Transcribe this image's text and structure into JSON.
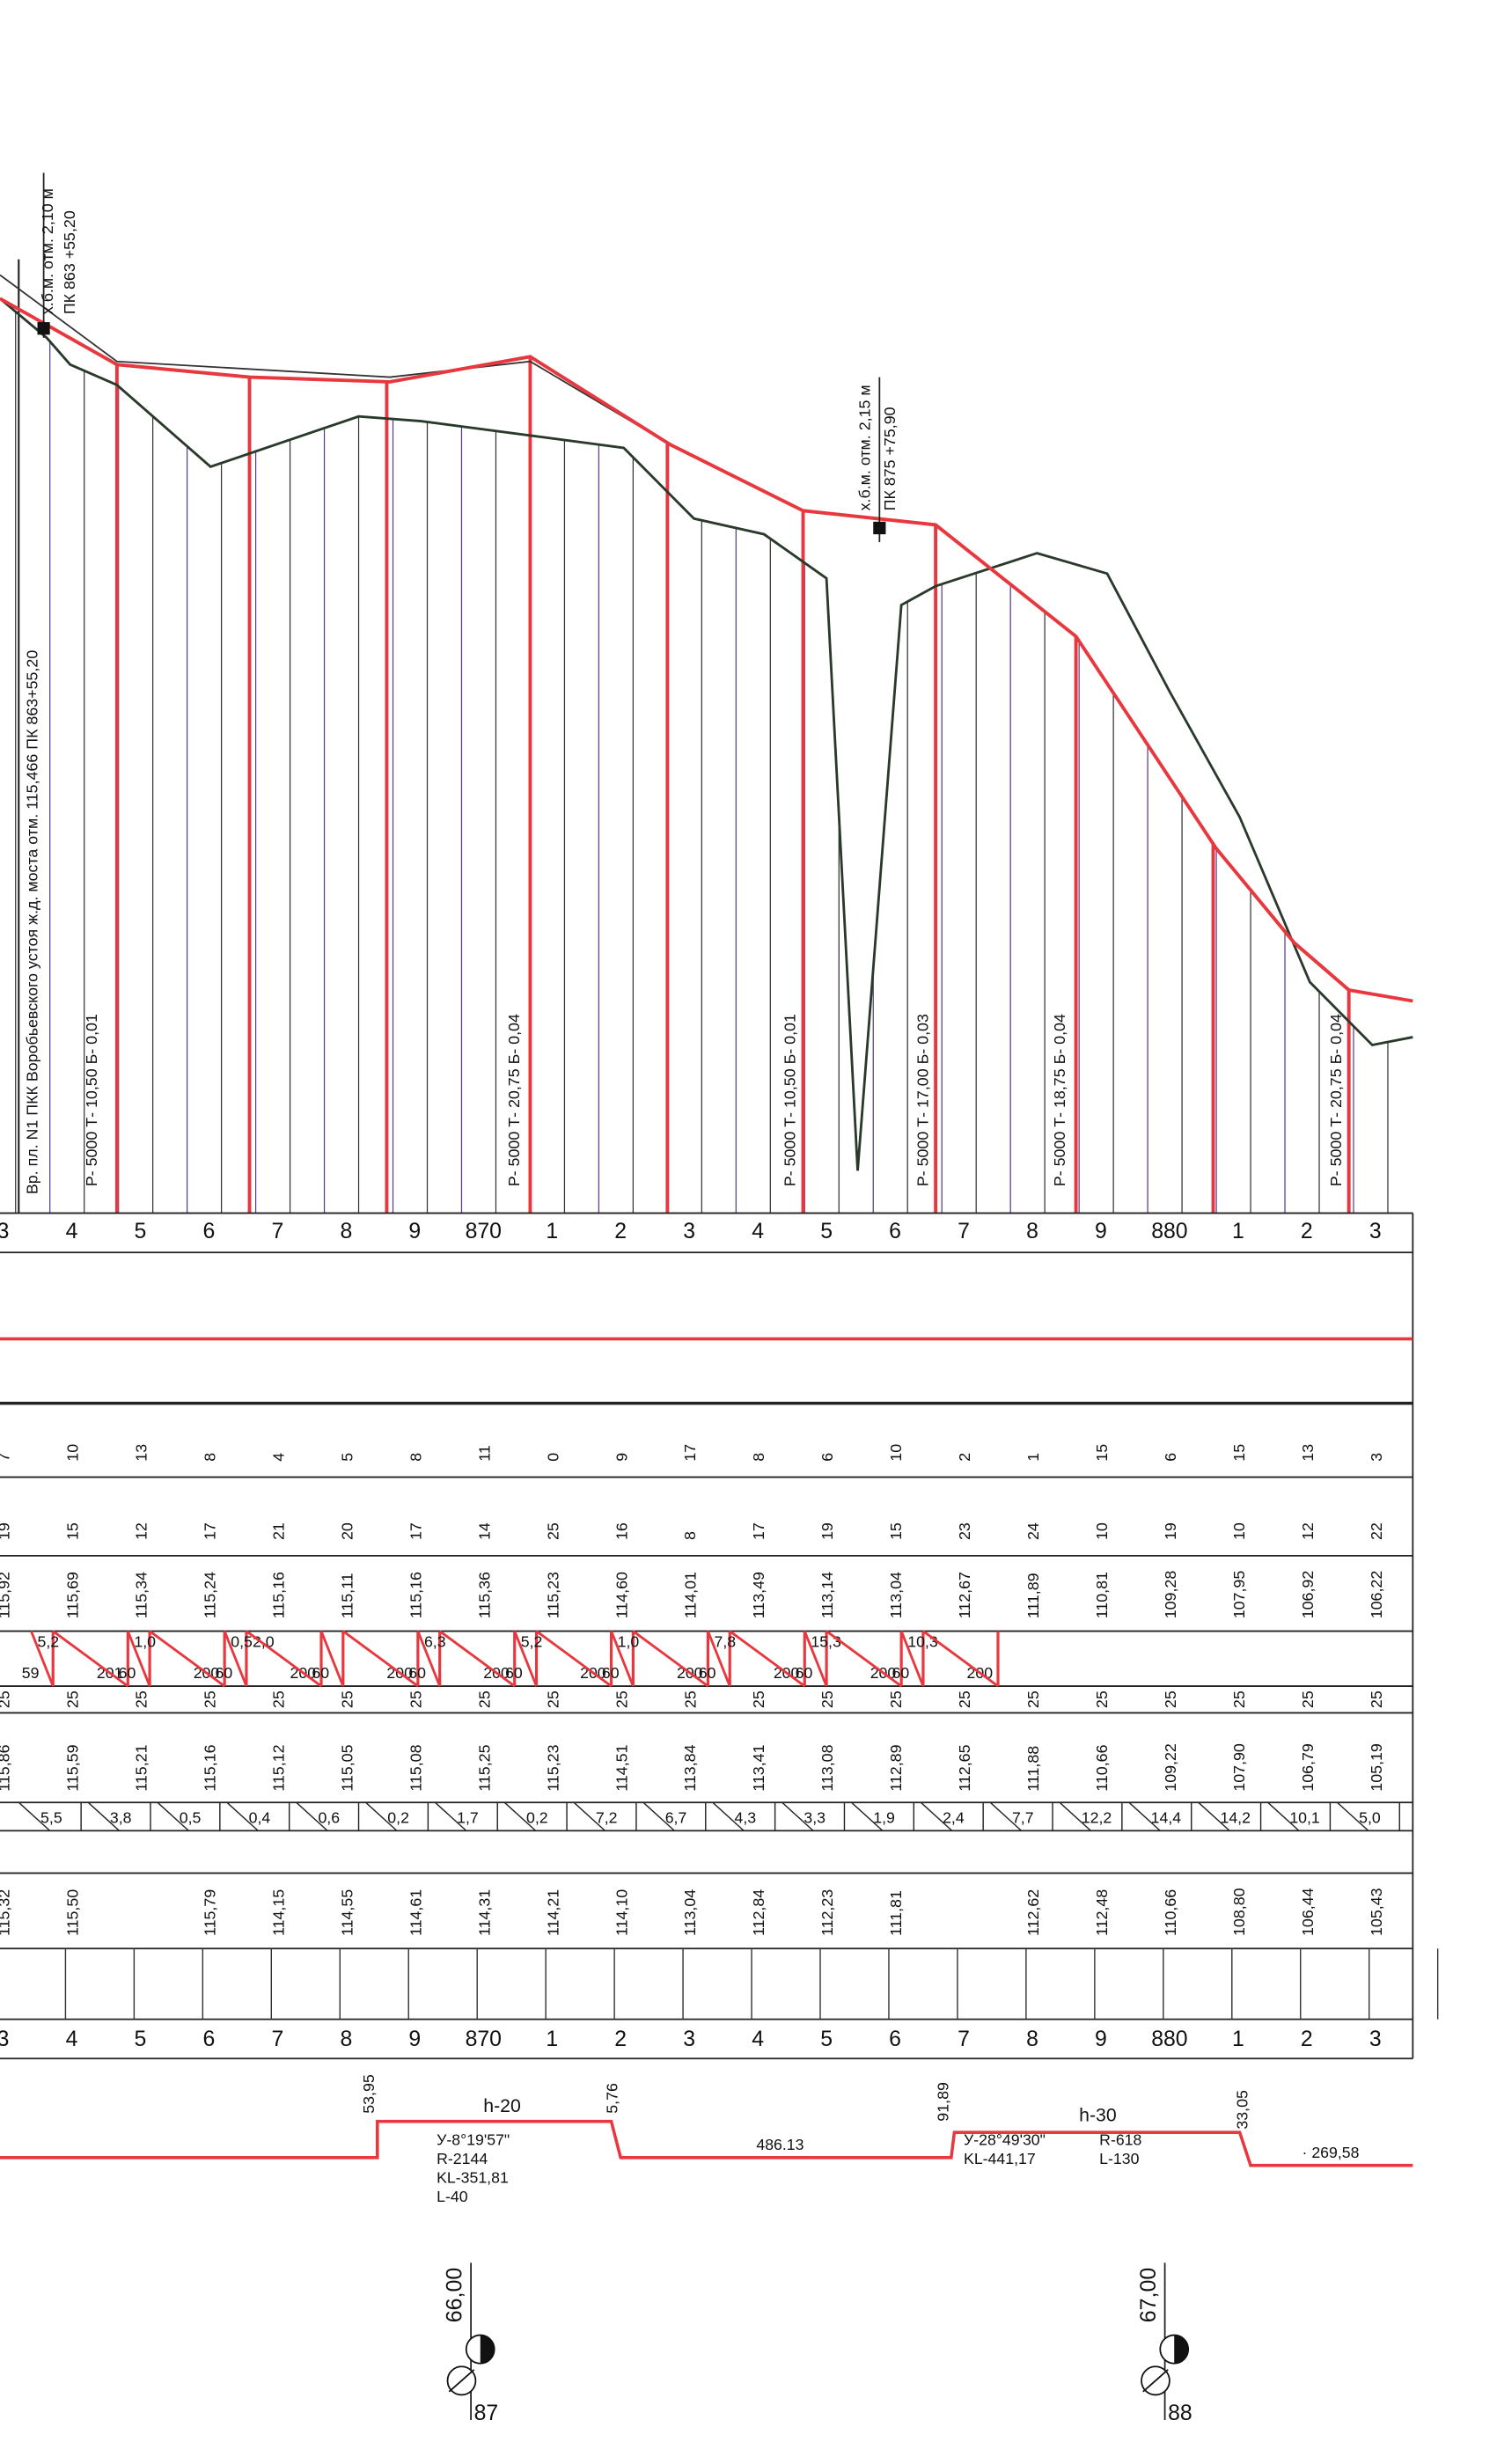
{
  "notes": {
    "station": "Вр. пл. N1 ПКК Воробьевского устоя ж.д. моста отм. 115,466 ПК 863+55,20",
    "benchmark1": "х.б.м. отм. 2,10 м",
    "benchmark1_pk": "ПК 863 +55,20",
    "benchmark2": "х.б.м. отм. 2,15 м",
    "benchmark2_pk": "ПК 875 +75,90"
  },
  "curves": [
    "Р- 5000  Т- 10,50  Б- 0,01",
    "Р- 5000  Т- 20,75  Б- 0,04",
    "Р- 5000  Т- 10,50  Б- 0,01",
    "Р- 5000  Т- 17,00  Б- 0,03",
    "Р- 5000  Т- 18,75  Б- 0,04",
    "Р- 5000  Т- 20,75  Б- 0,04"
  ],
  "pickets": [
    "3",
    "4",
    "5",
    "6",
    "7",
    "8",
    "9",
    "870",
    "1",
    "2",
    "3",
    "4",
    "5",
    "6",
    "7",
    "8",
    "9",
    "880",
    "1",
    "2",
    "3"
  ],
  "rows": {
    "row1": [
      "7",
      "10",
      "13",
      "8",
      "4",
      "5",
      "8",
      "11",
      "0",
      "9",
      "17",
      "8",
      "6",
      "10",
      "2",
      "1",
      "15",
      "6",
      "15",
      "13",
      "3"
    ],
    "row2": [
      "19",
      "15",
      "12",
      "17",
      "21",
      "20",
      "17",
      "14",
      "25",
      "16",
      "8",
      "17",
      "19",
      "15",
      "23",
      "24",
      "10",
      "19",
      "10",
      "12",
      "22"
    ],
    "design": [
      "115,92",
      "115,69",
      "115,34",
      "115,24",
      "115,16",
      "115,11",
      "115,16",
      "115,36",
      "115,23",
      "114,60",
      "114,01",
      "113,49",
      "113,14",
      "113,04",
      "112,67",
      "111,89",
      "110,81",
      "109,28",
      "107,95",
      "106,92",
      "106,22"
    ],
    "width": [
      "25",
      "25",
      "25",
      "25",
      "25",
      "25",
      "25",
      "25",
      "25",
      "25",
      "25",
      "25",
      "25",
      "25",
      "25",
      "25",
      "25",
      "25",
      "25",
      "25",
      "25"
    ],
    "natural": [
      "115,86",
      "115,59",
      "115,21",
      "115,16",
      "115,12",
      "115,05",
      "115,08",
      "115,25",
      "115,23",
      "114,51",
      "113,84",
      "113,41",
      "113,08",
      "112,89",
      "112,65",
      "111,88",
      "110,66",
      "109,22",
      "107,90",
      "106,79",
      "105,19"
    ],
    "existing": [
      "115,32",
      "115,50",
      null,
      "115,79",
      "114,15",
      "114,55",
      "114,61",
      "114,31",
      "114,21",
      "114,10",
      "113,04",
      "112,84",
      "112,23",
      "111,81",
      null,
      "112,62",
      "112,48",
      "110,66",
      "108,80",
      "106,44",
      "105,43"
    ]
  },
  "slopes": [
    "5,5",
    "3,8",
    "0,5",
    "0,4",
    "0,6",
    "0,2",
    "1,7",
    "0,2",
    "7,2",
    "6,7",
    "4,3",
    "3,3",
    "1,9",
    "2,4",
    "7,7",
    "12,2",
    "14,4",
    "14,2",
    "10,1",
    "5,0"
  ],
  "grades": [
    {
      "grade": "5,2",
      "length": "59"
    },
    {
      "grade": null,
      "length": "201"
    },
    {
      "grade": "1,0",
      "length": "60"
    },
    {
      "grade": null,
      "length": "200"
    },
    {
      "grade": "0,5",
      "length": "60"
    },
    {
      "grade": "2,0",
      "length": "200"
    },
    {
      "grade": null,
      "length": "60"
    },
    {
      "grade": null,
      "length": "200"
    },
    {
      "grade": "6,3",
      "length": "60"
    },
    {
      "grade": null,
      "length": "200"
    },
    {
      "grade": "5,2",
      "length": "60"
    },
    {
      "grade": null,
      "length": "200"
    },
    {
      "grade": "1,0",
      "length": "60"
    },
    {
      "grade": null,
      "length": "200"
    },
    {
      "grade": "7,8",
      "length": "60"
    },
    {
      "grade": null,
      "length": "200"
    },
    {
      "grade": "15,3",
      "length": "60"
    },
    {
      "grade": null,
      "length": "200"
    },
    {
      "grade": "10,3",
      "length": "60"
    },
    {
      "grade": null,
      "length": "200"
    }
  ],
  "plan": {
    "pk1": "53,95",
    "curve1": {
      "h": "h-20",
      "angle": "У-8°19'57\"",
      "r": "R-2144",
      "kl": "KL-351,81",
      "l": "L-40"
    },
    "pk2": "5,76",
    "straight": "486.13",
    "pk3": "91,89",
    "curve2": {
      "h": "h-30",
      "angle": "У-28°49'30\"",
      "kl": "KL-441,17",
      "r": "R-618",
      "l": "L-130"
    },
    "pk4": "33,05",
    "straight2": "· 269,58"
  },
  "km": [
    {
      "elev": "66,00",
      "number": "87"
    },
    {
      "elev": "67,00",
      "number": "88"
    }
  ]
}
